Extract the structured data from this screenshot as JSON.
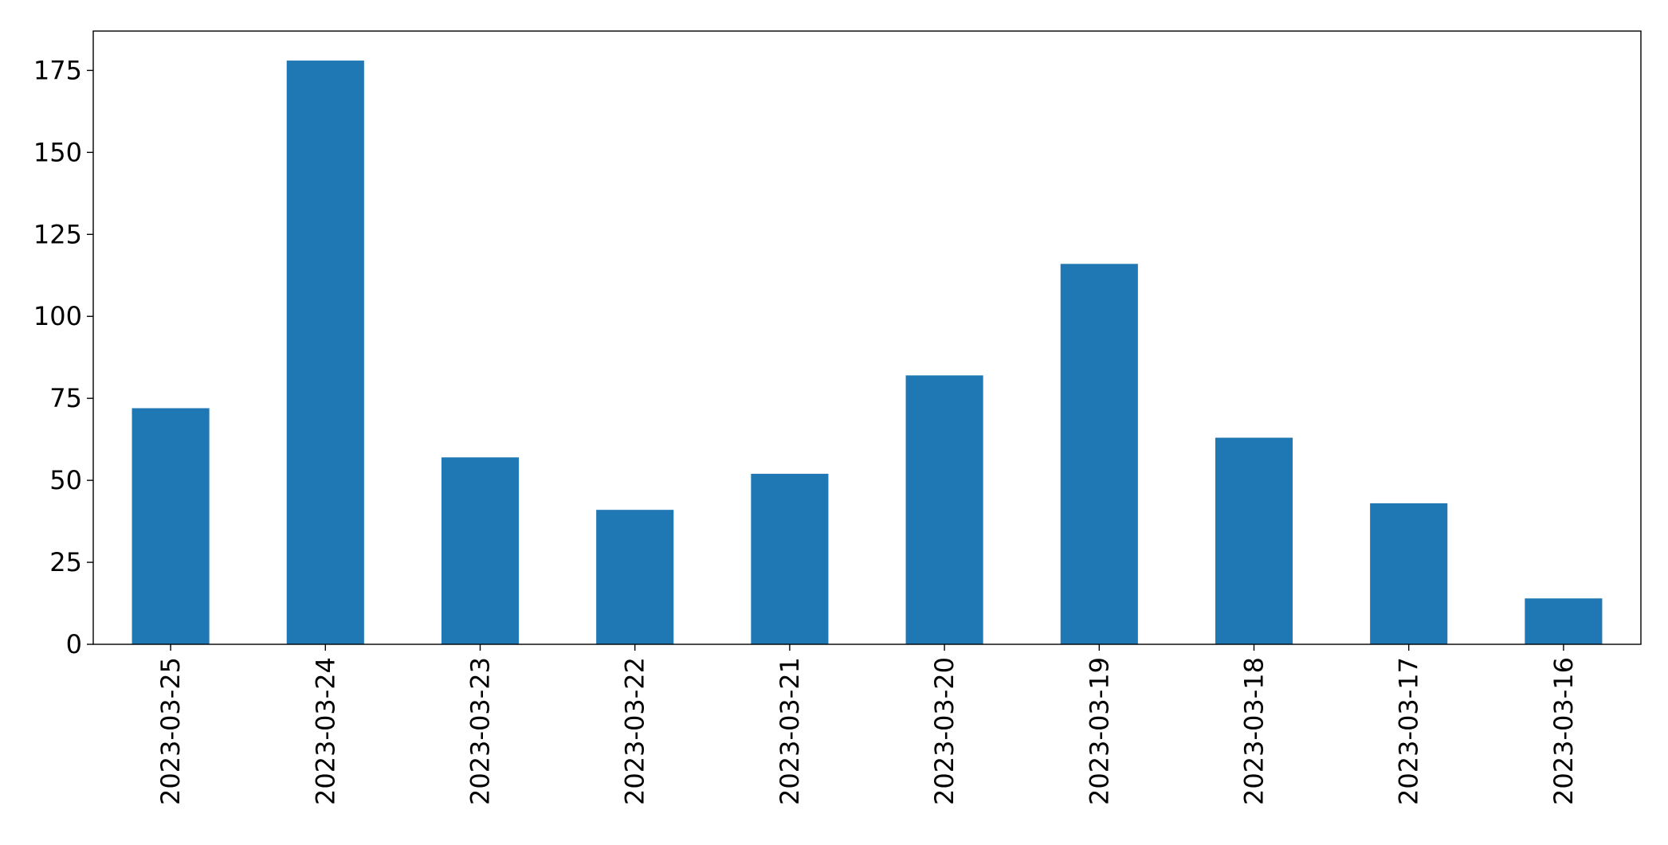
{
  "chart_data": {
    "type": "bar",
    "title": "",
    "xlabel": "",
    "ylabel": "",
    "categories": [
      "2023-03-25",
      "2023-03-24",
      "2023-03-23",
      "2023-03-22",
      "2023-03-21",
      "2023-03-20",
      "2023-03-19",
      "2023-03-18",
      "2023-03-17",
      "2023-03-16"
    ],
    "values": [
      72,
      178,
      57,
      41,
      52,
      82,
      116,
      63,
      43,
      14
    ],
    "ylim": [
      0,
      187
    ],
    "yticks": [
      0,
      25,
      50,
      75,
      100,
      125,
      150,
      175
    ],
    "ytick_labels": [
      "0",
      "25",
      "50",
      "75",
      "100",
      "125",
      "150",
      "175"
    ],
    "bar_color": "#1f77b4",
    "grid": false,
    "legend": "none"
  }
}
